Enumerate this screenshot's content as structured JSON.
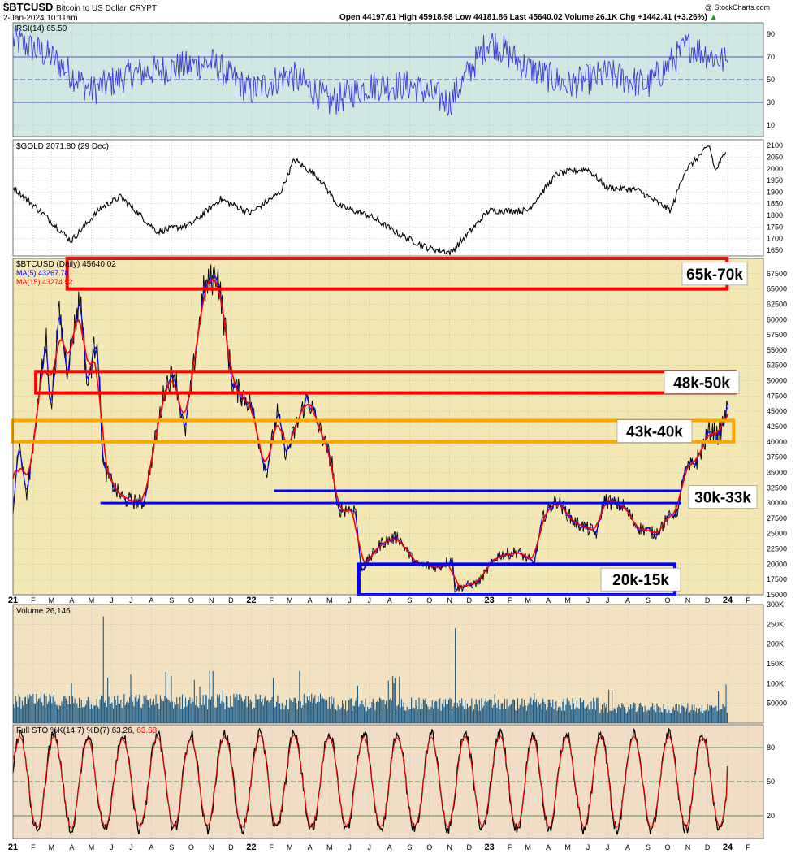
{
  "header": {
    "symbol": "$BTCUSD",
    "name": "Bitcoin to US Dollar",
    "exchange": "CRYPT",
    "datetime": "2-Jan-2024 10:11am",
    "watermark": "@ StockCharts.com",
    "ohlc": "Open 44197.61  High 45918.98  Low 44181.86  Last 45640.02  Volume 26.1K  Chg +1442.41 (+3.26%)",
    "ohlc_arrow": "▲"
  },
  "colors": {
    "rsi_bg": "#cfe8e4",
    "gold_bg": "#ffffff",
    "price_bg": "#f3e8b4",
    "volume_bg": "#f2e2c2",
    "sto_bg": "#f1dcc6",
    "resistance": "#ff0000",
    "pivot": "#ffa500",
    "support": "#0000ff",
    "price_line": "#000000",
    "ma5": "#0000ff",
    "ma15": "#ff0000",
    "rsi_line": "#3b3bd6",
    "volume_bars": "#1f5a82",
    "sto_k": "#000000",
    "sto_d": "#ff0000"
  },
  "panels": {
    "rsi": {
      "label": "RSI(14) 65.50"
    },
    "gold": {
      "label": "$GOLD 2071.80 (29 Dec)"
    },
    "price": {
      "label": "$BTCUSD (Daily) 45640.02",
      "ma5": "MA(5) 43267.78",
      "ma15": "MA(15) 43274.52"
    },
    "volume": {
      "label": "Volume 26,146"
    },
    "sto": {
      "label_black": "Full STO %K(14,7) %D(7) 63.26,",
      "label_red": "63.68"
    }
  },
  "x_axis": {
    "labels": [
      "21",
      "F",
      "M",
      "A",
      "M",
      "J",
      "J",
      "A",
      "S",
      "O",
      "N",
      "D",
      "22",
      "F",
      "M",
      "A",
      "M",
      "J",
      "J",
      "A",
      "S",
      "O",
      "N",
      "D",
      "23",
      "F",
      "M",
      "A",
      "M",
      "J",
      "J",
      "A",
      "S",
      "O",
      "N",
      "D",
      "24",
      "F"
    ],
    "bold": [
      "21",
      "22",
      "23",
      "24"
    ]
  },
  "chart_data": [
    {
      "type": "line",
      "title": "RSI(14) 65.50",
      "ylim": [
        0,
        100
      ],
      "y_ticks": [
        90,
        70,
        50,
        30,
        10
      ],
      "reference_lines": [
        70,
        50,
        30
      ],
      "series": [
        {
          "name": "RSI(14)",
          "x": [
            "2021-01-01",
            "2021-03-01",
            "2021-05-01",
            "2021-07-01",
            "2021-09-01",
            "2021-11-01",
            "2022-01-01",
            "2022-03-01",
            "2022-05-01",
            "2022-07-01",
            "2022-09-01",
            "2022-11-01",
            "2023-01-01",
            "2023-03-01",
            "2023-05-01",
            "2023-07-01",
            "2023-09-01",
            "2023-11-01",
            "2024-01-01"
          ],
          "values": [
            85,
            70,
            40,
            55,
            60,
            65,
            40,
            55,
            30,
            45,
            45,
            30,
            85,
            60,
            45,
            55,
            45,
            80,
            65
          ]
        }
      ]
    },
    {
      "type": "line",
      "title": "$GOLD 2071.80 (29 Dec)",
      "ylim": [
        1625,
        2125
      ],
      "y_ticks": [
        2100,
        2050,
        2000,
        1950,
        1900,
        1850,
        1800,
        1750,
        1700,
        1650
      ],
      "series": [
        {
          "name": "$GOLD",
          "x": [
            "2021-01-01",
            "2021-02-15",
            "2021-03-31",
            "2021-05-15",
            "2021-06-15",
            "2021-08-10",
            "2021-09-30",
            "2021-11-15",
            "2021-12-31",
            "2022-02-15",
            "2022-03-08",
            "2022-04-15",
            "2022-05-15",
            "2022-06-30",
            "2022-08-15",
            "2022-09-28",
            "2022-11-03",
            "2022-12-31",
            "2023-02-28",
            "2023-04-15",
            "2023-05-31",
            "2023-06-30",
            "2023-08-15",
            "2023-10-06",
            "2023-10-27",
            "2023-12-04",
            "2023-12-13",
            "2023-12-29"
          ],
          "values": [
            1920,
            1810,
            1690,
            1830,
            1880,
            1730,
            1760,
            1870,
            1810,
            1900,
            2040,
            1960,
            1840,
            1800,
            1720,
            1660,
            1640,
            1820,
            1820,
            1980,
            2000,
            1920,
            1910,
            1820,
            1990,
            2100,
            1990,
            2071.8
          ]
        }
      ]
    },
    {
      "type": "line",
      "title": "$BTCUSD (Daily) 45640.02",
      "ylim": [
        15000,
        70000
      ],
      "y_ticks": [
        67500,
        65000,
        62500,
        60000,
        57500,
        55000,
        52500,
        50000,
        47500,
        45000,
        42500,
        40000,
        37500,
        35000,
        32500,
        30000,
        27500,
        25000,
        22500,
        20000,
        17500,
        15000
      ],
      "series": [
        {
          "name": "$BTCUSD",
          "x": [
            "2021-01-01",
            "2021-01-10",
            "2021-01-22",
            "2021-02-08",
            "2021-02-21",
            "2021-02-28",
            "2021-03-13",
            "2021-03-25",
            "2021-04-14",
            "2021-04-25",
            "2021-05-10",
            "2021-05-19",
            "2021-06-08",
            "2021-06-22",
            "2021-07-20",
            "2021-08-23",
            "2021-09-06",
            "2021-09-21",
            "2021-10-20",
            "2021-11-10",
            "2021-12-04",
            "2021-12-31",
            "2022-01-24",
            "2022-02-10",
            "2022-02-24",
            "2022-03-28",
            "2022-05-05",
            "2022-05-12",
            "2022-06-10",
            "2022-06-18",
            "2022-07-20",
            "2022-08-14",
            "2022-09-10",
            "2022-10-15",
            "2022-11-05",
            "2022-11-09",
            "2022-12-15",
            "2023-01-14",
            "2023-02-15",
            "2023-03-10",
            "2023-03-25",
            "2023-04-14",
            "2023-05-10",
            "2023-06-15",
            "2023-06-25",
            "2023-07-25",
            "2023-08-17",
            "2023-09-11",
            "2023-10-20",
            "2023-10-24",
            "2023-11-15",
            "2023-12-05",
            "2023-12-18",
            "2024-01-02"
          ],
          "values": [
            29500,
            40000,
            31000,
            46000,
            57000,
            45000,
            61000,
            52000,
            64000,
            49000,
            58000,
            36000,
            32000,
            30500,
            30000,
            49500,
            51500,
            41000,
            64500,
            68000,
            49000,
            46500,
            35000,
            44500,
            38000,
            47500,
            36500,
            29000,
            29000,
            19000,
            23500,
            24500,
            20000,
            19500,
            21000,
            16000,
            17000,
            21500,
            22000,
            20000,
            28000,
            30500,
            27000,
            25000,
            30500,
            29500,
            26000,
            25000,
            29500,
            34500,
            37000,
            42000,
            41000,
            45640.02
          ]
        },
        {
          "name": "MA(5) 43267.78",
          "x": [
            "2021-01-01",
            "2021-04-14",
            "2021-07-20",
            "2021-11-10",
            "2022-01-24",
            "2022-06-18",
            "2022-11-09",
            "2023-04-14",
            "2023-09-11",
            "2024-01-02"
          ],
          "values": [
            29000,
            62000,
            30500,
            66000,
            36000,
            20000,
            16500,
            29500,
            25500,
            43267.78
          ]
        },
        {
          "name": "MA(15) 43274.52",
          "x": [
            "2021-01-01",
            "2021-04-14",
            "2021-07-20",
            "2021-11-10",
            "2022-01-24",
            "2022-06-18",
            "2022-11-09",
            "2023-04-14",
            "2023-09-11",
            "2024-01-02"
          ],
          "values": [
            28500,
            60000,
            31000,
            64000,
            38000,
            21000,
            17000,
            29000,
            26000,
            43274.52
          ]
        }
      ],
      "zones": [
        {
          "label": "65k-70k",
          "low": 65000,
          "high": 70000
        },
        {
          "label": "48k-50k",
          "low": 48000,
          "high": 51500
        },
        {
          "label": "43k-40k",
          "low": 40000,
          "high": 43500
        },
        {
          "label": "30k-33k",
          "low": 30000,
          "high": 32000
        },
        {
          "label": "20k-15k",
          "low": 15000,
          "high": 20000
        }
      ]
    },
    {
      "type": "bar",
      "title": "Volume 26,146",
      "ylim": [
        0,
        300000
      ],
      "y_ticks": [
        300000,
        250000,
        200000,
        150000,
        100000,
        50000
      ],
      "y_tick_labels": [
        "300K",
        "250K",
        "200K",
        "150K",
        "100K",
        "50000"
      ],
      "series": [
        {
          "name": "Volume",
          "x": [
            "2021-05-19",
            "2022-06-13",
            "2022-11-09",
            "2024-01-02"
          ],
          "values": [
            270000,
            95000,
            240000,
            26146
          ]
        }
      ]
    },
    {
      "type": "line",
      "title": "Full STO %K(14,7) %D(7) 63.26, 63.68",
      "ylim": [
        0,
        100
      ],
      "y_ticks": [
        80,
        50,
        20
      ],
      "reference_lines": [
        80,
        50,
        20
      ],
      "series": [
        {
          "name": "%K(14,7)",
          "x": [
            "2024-01-02"
          ],
          "values": [
            63.26
          ]
        },
        {
          "name": "%D(7)",
          "x": [
            "2024-01-02"
          ],
          "values": [
            63.68
          ]
        }
      ]
    }
  ]
}
